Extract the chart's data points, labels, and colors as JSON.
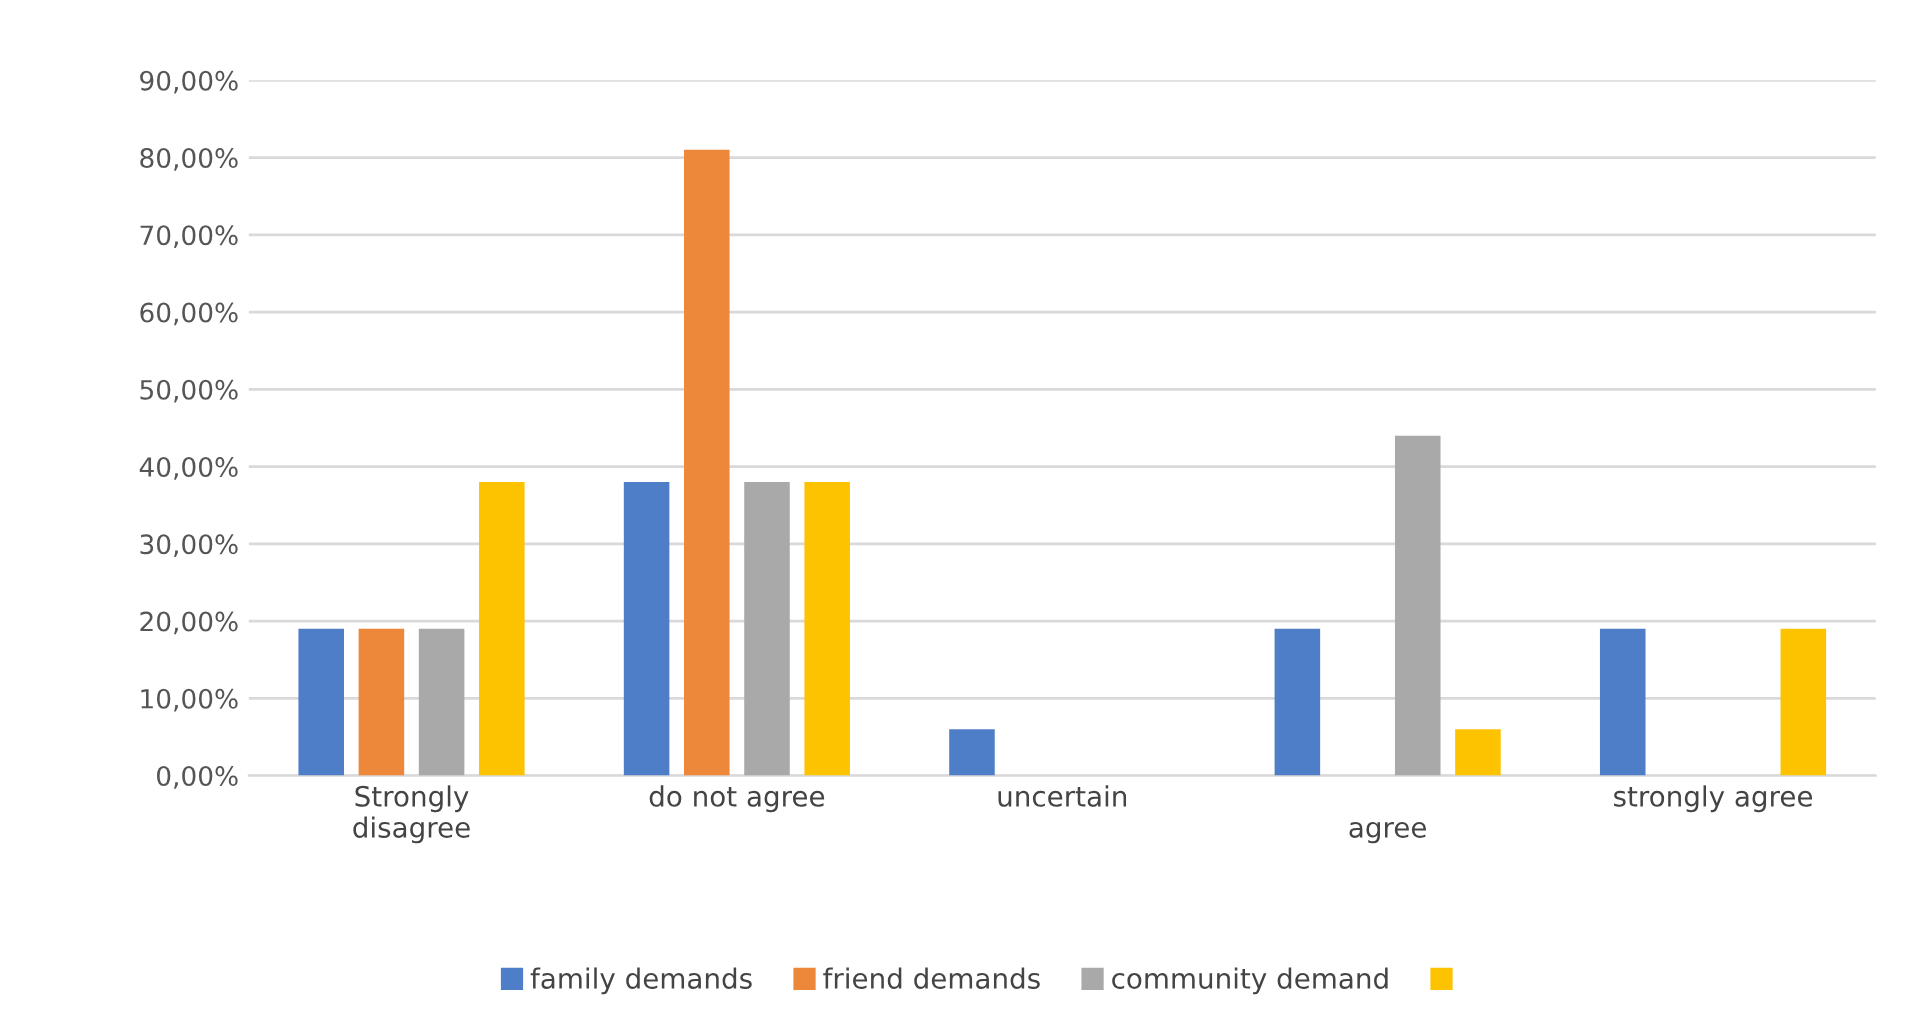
{
  "chart_data": {
    "type": "bar",
    "categories": [
      "Strongly\ndisagree",
      "do not agree",
      "uncertain",
      "\nagree",
      "strongly agree"
    ],
    "series": [
      {
        "name": "family demands",
        "color": "#4f7ec9",
        "values": [
          19,
          38,
          6,
          19,
          19
        ]
      },
      {
        "name": "friend demands",
        "color": "#ed873a",
        "values": [
          19,
          81,
          0,
          0,
          0
        ]
      },
      {
        "name": "community demand",
        "color": "#a9a9a9",
        "values": [
          19,
          38,
          0,
          44,
          0
        ]
      },
      {
        "color": "#fec300",
        "values": [
          38,
          38,
          0,
          6,
          19
        ]
      }
    ],
    "ylim": [
      0,
      90
    ],
    "yticks": [
      {
        "value": 0,
        "label": "0,00%"
      },
      {
        "value": 10,
        "label": "10,00%"
      },
      {
        "value": 20,
        "label": "20,00%"
      },
      {
        "value": 30,
        "label": "30,00%"
      },
      {
        "value": 40,
        "label": "40,00%"
      },
      {
        "value": 50,
        "label": "50,00%"
      },
      {
        "value": 60,
        "label": "60,00%"
      },
      {
        "value": 70,
        "label": "70,00%"
      },
      {
        "value": 80,
        "label": "80,00%"
      },
      {
        "value": 90,
        "label": "90,00%"
      }
    ],
    "grid": "y",
    "legend": "bottom"
  }
}
